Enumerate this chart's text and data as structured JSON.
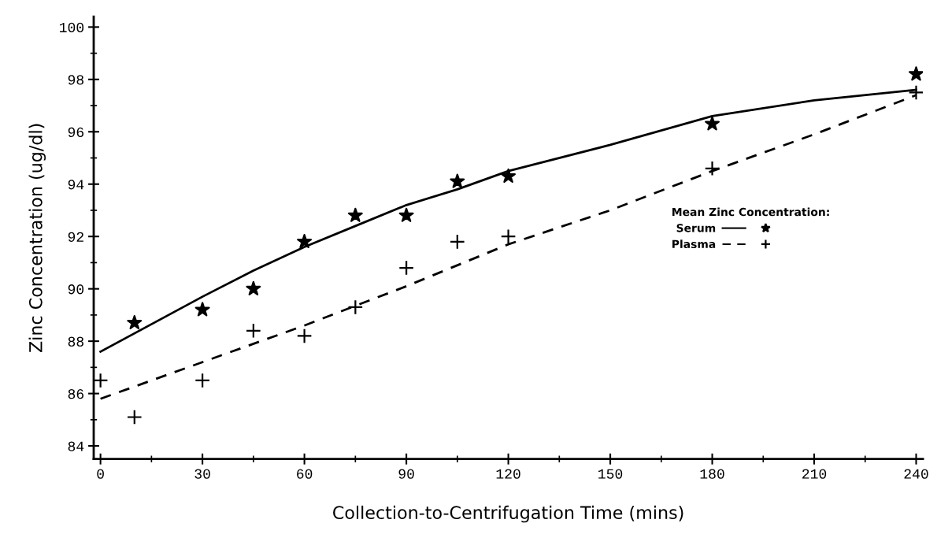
{
  "chart_data": {
    "type": "scatter",
    "xlabel": "Collection-to-Centrifugation Time (mins)",
    "ylabel": "Zinc Concentration (ug/dl)",
    "legend_title": "Mean Zinc Concentration:",
    "legend": "right",
    "grid": false,
    "xlim": [
      -2,
      242
    ],
    "ylim": [
      83.5,
      100.4
    ],
    "xticks": [
      0,
      30,
      60,
      90,
      120,
      150,
      180,
      210,
      240
    ],
    "yticks": [
      84,
      86,
      88,
      90,
      92,
      94,
      96,
      98,
      100
    ],
    "series": [
      {
        "type": "scatter",
        "marker": "star",
        "color": "#000000",
        "x": [
          10,
          30,
          45,
          60,
          75,
          90,
          105,
          120,
          180,
          240
        ],
        "values": [
          88.7,
          89.2,
          90.0,
          91.8,
          92.8,
          92.8,
          94.1,
          94.3,
          96.3,
          98.2
        ]
      },
      {
        "name": "Serum",
        "type": "line",
        "line_style": "solid",
        "color": "#000000",
        "x": [
          0,
          30,
          45,
          60,
          75,
          90,
          105,
          120,
          150,
          180,
          210,
          240
        ],
        "values": [
          87.6,
          89.7,
          90.7,
          91.6,
          92.4,
          93.2,
          93.8,
          94.5,
          95.5,
          96.6,
          97.2,
          97.6
        ]
      },
      {
        "marker": "cross",
        "color": "#000000",
        "x": [
          0,
          10,
          30,
          45,
          60,
          75,
          90,
          105,
          120,
          180,
          240
        ],
        "values": [
          86.5,
          85.1,
          86.5,
          88.4,
          88.2,
          89.3,
          90.8,
          91.8,
          92.0,
          94.6,
          97.5
        ]
      },
      {
        "name": "Plasma",
        "type": "line",
        "line_style": "dashed",
        "color": "#000000",
        "x": [
          0,
          30,
          60,
          90,
          120,
          150,
          180,
          210,
          240
        ],
        "values": [
          85.8,
          87.2,
          88.6,
          90.1,
          91.7,
          93.0,
          94.5,
          95.9,
          97.4
        ]
      }
    ]
  }
}
